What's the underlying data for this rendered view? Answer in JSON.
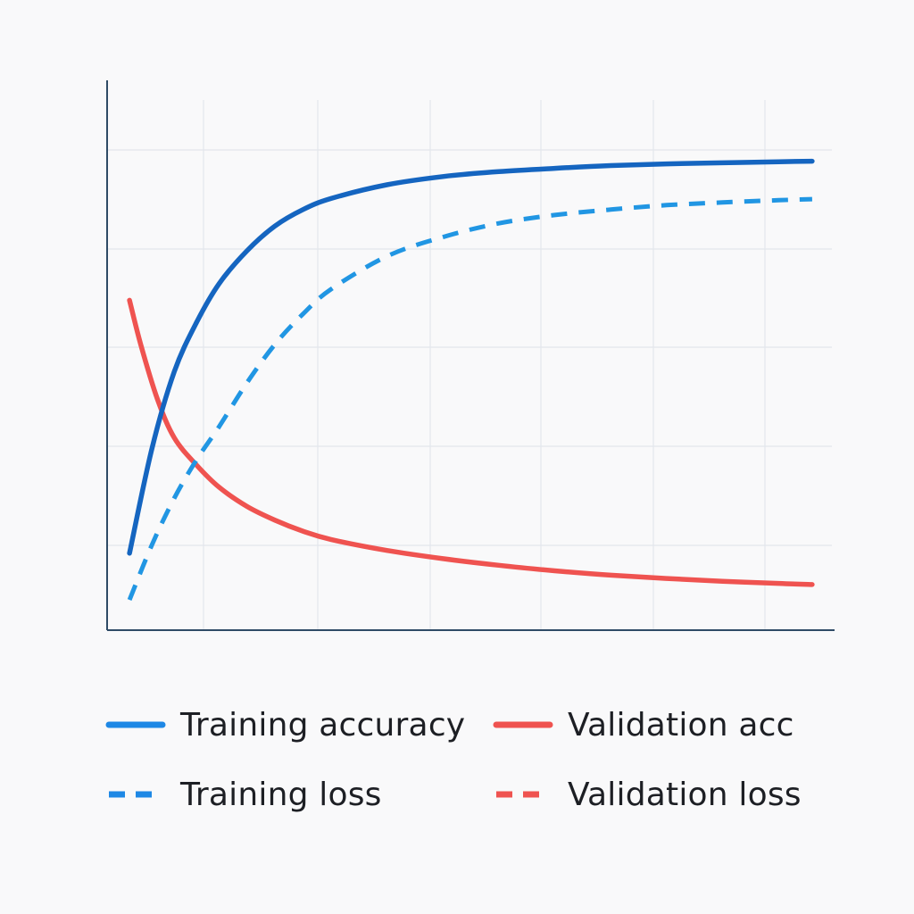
{
  "chart_data": {
    "type": "line",
    "title": "",
    "xlabel": "",
    "ylabel": "",
    "xlim": [
      0,
      6.3
    ],
    "ylim": [
      0,
      1.0
    ],
    "grid": true,
    "legend_position": "bottom",
    "series": [
      {
        "name": "Training accuracy",
        "color": "#1565c0",
        "style": "solid",
        "x": [
          0.2,
          0.4,
          0.6,
          0.8,
          1.0,
          1.25,
          1.5,
          1.75,
          2.0,
          2.5,
          3.0,
          3.5,
          4.0,
          4.5,
          5.0,
          5.5,
          6.0,
          6.3
        ],
        "y": [
          0.14,
          0.33,
          0.47,
          0.56,
          0.63,
          0.69,
          0.735,
          0.765,
          0.785,
          0.81,
          0.825,
          0.834,
          0.84,
          0.845,
          0.848,
          0.85,
          0.852,
          0.853
        ]
      },
      {
        "name": "Training loss",
        "color": "#2196e3",
        "style": "dashed",
        "x": [
          0.2,
          0.4,
          0.6,
          0.8,
          1.0,
          1.25,
          1.5,
          1.75,
          2.0,
          2.5,
          3.0,
          3.5,
          4.0,
          4.5,
          5.0,
          5.5,
          6.0,
          6.3
        ],
        "y": [
          0.055,
          0.155,
          0.24,
          0.31,
          0.37,
          0.45,
          0.52,
          0.575,
          0.62,
          0.68,
          0.715,
          0.74,
          0.755,
          0.765,
          0.773,
          0.778,
          0.782,
          0.784
        ]
      },
      {
        "name": "Validation acc",
        "color": "#ef5350",
        "style": "solid",
        "x": [
          0.2,
          0.3,
          0.45,
          0.6,
          0.8,
          1.0,
          1.25,
          1.5,
          1.75,
          2.0,
          2.5,
          3.0,
          3.5,
          4.0,
          4.5,
          5.0,
          5.5,
          6.0,
          6.3
        ],
        "y": [
          0.6,
          0.52,
          0.42,
          0.35,
          0.3,
          0.26,
          0.225,
          0.2,
          0.18,
          0.165,
          0.145,
          0.13,
          0.118,
          0.108,
          0.1,
          0.094,
          0.089,
          0.085,
          0.083
        ]
      },
      {
        "name": "Validation loss",
        "color": "#ef5350",
        "style": "dashed",
        "x": [],
        "y": []
      }
    ]
  },
  "legend": [
    {
      "label": "Training accuracy",
      "color": "#1e88e5",
      "style": "solid"
    },
    {
      "label": "Validation acc",
      "color": "#ef5350",
      "style": "solid"
    },
    {
      "label": "Training loss",
      "color": "#1e88e5",
      "style": "dashed"
    },
    {
      "label": "Validation loss",
      "color": "#ef5350",
      "style": "dashed"
    }
  ]
}
